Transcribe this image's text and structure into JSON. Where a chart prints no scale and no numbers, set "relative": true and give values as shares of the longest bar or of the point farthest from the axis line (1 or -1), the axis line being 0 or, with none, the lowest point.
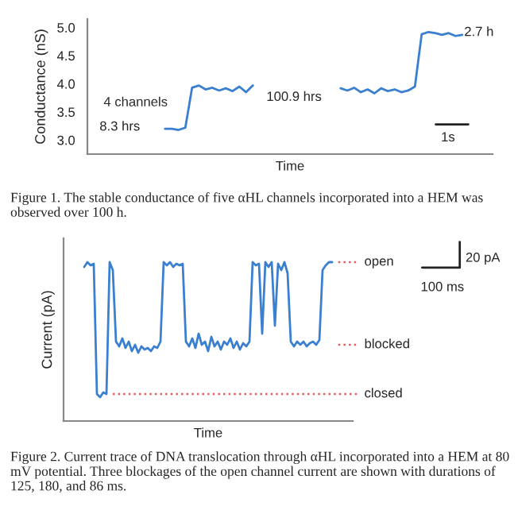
{
  "chart_data": [
    {
      "type": "line",
      "xlabel": "Time",
      "ylabel": "Conductance (nS)",
      "categories": [
        null,
        null,
        null,
        null,
        null,
        null,
        null,
        null,
        null,
        null,
        null,
        null,
        null,
        null,
        null,
        null,
        null,
        null,
        null,
        null,
        null,
        null,
        null,
        null,
        null,
        null,
        null,
        null,
        null,
        null,
        null,
        null,
        null,
        null,
        null,
        null,
        null,
        null,
        null,
        null,
        null,
        null,
        null,
        null,
        null,
        null,
        null,
        null,
        null,
        null,
        null,
        null,
        null,
        null,
        null,
        null,
        null,
        null,
        null,
        null
      ],
      "series": [
        {
          "color": "#3a7fd0",
          "values": [
            null,
            null,
            null,
            null,
            null,
            null,
            null,
            null,
            null,
            null,
            null,
            3.2,
            3.2,
            3.18,
            3.22,
            3.93,
            3.97,
            3.9,
            3.93,
            3.88,
            3.92,
            3.87,
            3.95,
            3.85,
            3.97,
            null,
            null,
            null,
            null,
            null,
            null,
            null,
            null,
            null,
            null,
            null,
            null,
            3.92,
            3.88,
            3.93,
            3.85,
            3.9,
            3.83,
            3.92,
            3.87,
            3.9,
            3.85,
            3.88,
            3.95,
            4.88,
            4.92,
            4.9,
            4.87,
            4.9,
            4.85,
            4.87,
            null,
            null,
            null,
            null
          ]
        }
      ],
      "ylim": [
        2.75,
        5.15
      ],
      "yticks": [
        {
          "value": 3,
          "label": "3.0"
        },
        {
          "value": 3.5,
          "label": "3.5"
        },
        {
          "value": 4,
          "label": "4.0"
        },
        {
          "value": 4.5,
          "label": "4.5"
        },
        {
          "value": 5,
          "label": "5.0"
        }
      ],
      "tick_labels": "y",
      "annotations": [
        "4 channels",
        "8.3 hrs",
        "100.9 hrs",
        "2.7 h",
        "1s",
        "Figure 1. The stable conductance of five αHL channels incorporated into a HEM was observed over 100 h."
      ]
    },
    {
      "type": "line",
      "relative": true,
      "xlabel": "Time",
      "ylabel": "Current (pA)",
      "categories": [
        null,
        null,
        null,
        null,
        null,
        null,
        null,
        null,
        null,
        null,
        null,
        null,
        null,
        null,
        null,
        null,
        null,
        null,
        null,
        null,
        null,
        null,
        null,
        null,
        null,
        null,
        null,
        null,
        null,
        null,
        null,
        null,
        null,
        null,
        null,
        null,
        null,
        null,
        null,
        null,
        null,
        null,
        null,
        null,
        null,
        null,
        null,
        null,
        null,
        null,
        null,
        null,
        null,
        null,
        null,
        null,
        null,
        null,
        null,
        null,
        null,
        null,
        null,
        null,
        null,
        null,
        null,
        null,
        null,
        null,
        null,
        null,
        null,
        null,
        null,
        null,
        null,
        null,
        null,
        null,
        null,
        null,
        null,
        null,
        null,
        null,
        null,
        null,
        null,
        null,
        null
      ],
      "series": [
        {
          "color": "#3a7fd0",
          "values": [
            null,
            null,
            null,
            null,
            null,
            null,
            0.97,
            1.0,
            0.98,
            0.99,
            0.17,
            0.15,
            0.18,
            0.17,
            1.0,
            0.95,
            0.5,
            0.47,
            0.52,
            0.46,
            0.5,
            0.44,
            0.48,
            0.43,
            0.47,
            0.45,
            0.46,
            0.44,
            0.47,
            0.46,
            0.5,
            1.0,
            0.98,
            1.0,
            0.97,
            0.99,
            0.98,
            0.99,
            0.5,
            0.47,
            0.52,
            0.46,
            0.55,
            0.48,
            0.5,
            0.44,
            0.53,
            0.47,
            0.5,
            0.45,
            0.5,
            0.48,
            0.52,
            0.46,
            0.5,
            0.45,
            0.49,
            0.47,
            0.5,
            1.0,
            0.98,
            0.99,
            0.55,
            1.0,
            0.97,
            1.0,
            0.6,
            0.99,
            0.95,
            1.0,
            0.93,
            0.5,
            0.47,
            0.5,
            0.48,
            0.5,
            0.47,
            0.49,
            0.5,
            0.48,
            0.51,
            0.95,
            0.98,
            1.0,
            1.0,
            null,
            null,
            null,
            null,
            null,
            null
          ]
        }
      ],
      "ref_lines": [
        {
          "axis": "y",
          "value": 1.0,
          "label": "open",
          "color": "#e06060",
          "line_style": "dotted"
        },
        {
          "axis": "y",
          "value": 0.48,
          "label": "blocked",
          "color": "#e06060",
          "line_style": "dotted"
        },
        {
          "axis": "y",
          "value": 0.17,
          "label": "closed",
          "color": "#e06060",
          "line_style": "dotted"
        }
      ],
      "tick_labels": false,
      "annotations": [
        "20 pA",
        "100 ms",
        "Figure 2. Current trace of DNA translocation through αHL incorporated into a HEM at 80 mV potential. Three blockages of the open channel current are shown with durations of 125, 180, and 86 ms."
      ]
    }
  ]
}
